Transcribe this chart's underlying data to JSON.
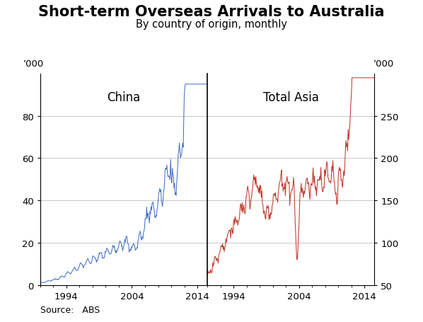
{
  "title": "Short-term Overseas Arrivals to Australia",
  "subtitle": "By country of origin, monthly",
  "ylabel_left": "’000",
  "ylabel_right": "’000",
  "source": "Source:   ABS",
  "china_label": "China",
  "asia_label": "Total Asia",
  "china_color": "#4472C4",
  "asia_color": "#C0392B",
  "divider_color": "#000000",
  "left_ylim": [
    0,
    100
  ],
  "right_ylim": [
    50,
    300
  ],
  "left_yticks": [
    0,
    20,
    40,
    60,
    80
  ],
  "right_yticks": [
    50,
    100,
    150,
    200,
    250
  ],
  "background_color": "#ffffff",
  "grid_color": "#b0b0b0",
  "title_fontsize": 15,
  "subtitle_fontsize": 10.5,
  "label_fontsize": 12,
  "tick_fontsize": 9.5,
  "source_fontsize": 9
}
